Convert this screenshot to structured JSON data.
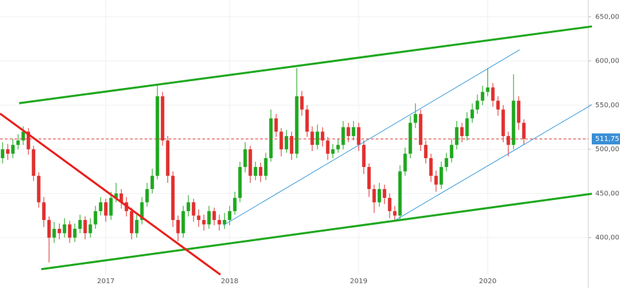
{
  "chart_data": {
    "type": "candlestick",
    "categories": [
      null,
      null,
      null,
      null,
      null,
      null,
      null,
      null,
      null,
      null,
      null,
      null,
      null,
      null,
      null,
      null,
      null,
      null,
      null,
      null,
      "2017",
      null,
      null,
      null,
      null,
      null,
      null,
      null,
      null,
      null,
      null,
      null,
      null,
      null,
      null,
      null,
      null,
      null,
      null,
      null,
      null,
      null,
      null,
      null,
      "2018",
      null,
      null,
      null,
      null,
      null,
      null,
      null,
      null,
      null,
      null,
      null,
      null,
      null,
      null,
      null,
      null,
      null,
      null,
      null,
      null,
      null,
      null,
      null,
      null,
      "2019",
      null,
      null,
      null,
      null,
      null,
      null,
      null,
      null,
      null,
      null,
      null,
      null,
      null,
      null,
      null,
      null,
      null,
      null,
      null,
      null,
      null,
      null,
      null,
      null,
      "2020",
      null,
      null,
      null,
      null,
      null,
      null,
      null
    ],
    "open": [
      490,
      500,
      495,
      505,
      510,
      520,
      500,
      470,
      440,
      420,
      400,
      410,
      405,
      415,
      400,
      410,
      420,
      405,
      415,
      430,
      440,
      425,
      445,
      450,
      440,
      430,
      405,
      420,
      440,
      455,
      470,
      560,
      510,
      470,
      420,
      405,
      430,
      440,
      425,
      420,
      415,
      430,
      420,
      415,
      420,
      430,
      445,
      480,
      500,
      470,
      480,
      470,
      490,
      535,
      520,
      500,
      515,
      495,
      560,
      545,
      520,
      505,
      520,
      510,
      495,
      500,
      505,
      525,
      515,
      525,
      505,
      480,
      455,
      440,
      455,
      445,
      430,
      425,
      475,
      495,
      530,
      540,
      505,
      490,
      470,
      460,
      480,
      490,
      505,
      525,
      515,
      535,
      545,
      555,
      565,
      570,
      555,
      545,
      515,
      505,
      555,
      530
    ],
    "high": [
      508,
      506,
      512,
      517,
      526,
      524,
      504,
      474,
      446,
      424,
      418,
      416,
      422,
      419,
      416,
      426,
      424,
      422,
      436,
      446,
      444,
      452,
      462,
      455,
      446,
      434,
      426,
      446,
      462,
      478,
      572,
      565,
      515,
      475,
      425,
      436,
      448,
      444,
      432,
      426,
      436,
      434,
      426,
      428,
      436,
      452,
      486,
      508,
      504,
      486,
      485,
      496,
      545,
      540,
      524,
      522,
      520,
      592,
      566,
      550,
      526,
      528,
      525,
      514,
      506,
      512,
      532,
      530,
      532,
      530,
      510,
      484,
      460,
      462,
      460,
      450,
      436,
      482,
      502,
      538,
      552,
      545,
      510,
      495,
      476,
      486,
      496,
      512,
      532,
      530,
      542,
      552,
      562,
      572,
      592,
      575,
      560,
      550,
      520,
      585,
      560,
      534
    ],
    "low": [
      484,
      488,
      490,
      500,
      505,
      494,
      464,
      434,
      412,
      372,
      394,
      398,
      400,
      394,
      395,
      405,
      398,
      400,
      410,
      425,
      418,
      420,
      440,
      433,
      424,
      398,
      400,
      415,
      435,
      450,
      466,
      504,
      462,
      412,
      396,
      400,
      424,
      418,
      412,
      408,
      410,
      414,
      408,
      410,
      414,
      426,
      440,
      474,
      462,
      465,
      463,
      465,
      486,
      514,
      492,
      496,
      488,
      490,
      538,
      514,
      498,
      500,
      503,
      488,
      490,
      496,
      500,
      508,
      510,
      498,
      472,
      446,
      428,
      435,
      438,
      422,
      418,
      420,
      470,
      490,
      524,
      498,
      484,
      463,
      452,
      455,
      475,
      485,
      500,
      508,
      510,
      530,
      540,
      550,
      560,
      548,
      538,
      508,
      492,
      500,
      522,
      505
    ],
    "close": [
      500,
      495,
      505,
      510,
      520,
      500,
      470,
      440,
      420,
      400,
      410,
      405,
      415,
      400,
      410,
      420,
      405,
      415,
      430,
      440,
      425,
      445,
      450,
      440,
      430,
      405,
      420,
      440,
      455,
      470,
      560,
      510,
      470,
      420,
      405,
      430,
      440,
      425,
      420,
      415,
      430,
      420,
      415,
      420,
      430,
      445,
      480,
      500,
      470,
      480,
      470,
      490,
      535,
      520,
      500,
      515,
      495,
      560,
      545,
      520,
      505,
      520,
      510,
      495,
      500,
      505,
      525,
      515,
      525,
      505,
      480,
      455,
      440,
      455,
      445,
      430,
      425,
      475,
      495,
      530,
      540,
      505,
      490,
      470,
      460,
      480,
      490,
      505,
      525,
      515,
      535,
      545,
      555,
      565,
      570,
      555,
      545,
      515,
      505,
      555,
      530,
      512
    ],
    "up_color": "#1fa81f",
    "down_color": "#e0302f",
    "ylim": [
      343,
      669
    ],
    "yticks": [
      {
        "value": 400,
        "label": "400,00"
      },
      {
        "value": 450,
        "label": "450,00"
      },
      {
        "value": 500,
        "label": "500,00"
      },
      {
        "value": 550,
        "label": "550,00"
      },
      {
        "value": 600,
        "label": "600,00"
      },
      {
        "value": 650,
        "label": "650,00"
      }
    ],
    "grid": true,
    "price_line": {
      "value": 511.75,
      "label": "511,75",
      "color": "#d33"
    },
    "trendlines": [
      {
        "color": "#1fa81f",
        "x": [
          3.2,
          114.2
        ],
        "y": [
          552.2,
          639.1
        ]
      },
      {
        "color": "#1fa81f",
        "x": [
          7.5,
          114.2
        ],
        "y": [
          364.3,
          449.7
        ]
      },
      {
        "color": "#e8201c",
        "x": [
          -0.5,
          42.2
        ],
        "y": [
          540.5,
          358.1
        ]
      },
      {
        "color": "#3a9ad9",
        "x": [
          42.8,
          100.2
        ],
        "y": [
          414,
          612.7
        ]
      },
      {
        "color": "#3a9ad9",
        "x": [
          76.2,
          114.2
        ],
        "y": [
          420.2,
          550.6
        ]
      }
    ]
  }
}
